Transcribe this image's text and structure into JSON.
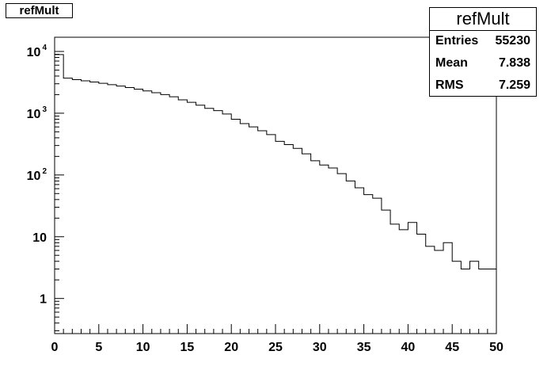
{
  "title_box": "refMult",
  "stats": {
    "title": "refMult",
    "rows": [
      {
        "key": "Entries",
        "value": "55230"
      },
      {
        "key": "Mean",
        "value": "7.838"
      },
      {
        "key": "RMS",
        "value": "7.259"
      }
    ]
  },
  "chart_data": {
    "type": "bar",
    "title": "refMult",
    "xlabel": "",
    "ylabel": "",
    "xlim": [
      0,
      50
    ],
    "ylog": true,
    "bin_width": 1,
    "x_ticks": [
      "0",
      "5",
      "10",
      "15",
      "20",
      "25",
      "30",
      "35",
      "40",
      "45",
      "50"
    ],
    "y_ticks": [
      {
        "value": 1,
        "label": "1"
      },
      {
        "value": 10,
        "label": "10"
      },
      {
        "value": 100,
        "base": "10",
        "exp": "2"
      },
      {
        "value": 1000,
        "base": "10",
        "exp": "3"
      },
      {
        "value": 10000,
        "base": "10",
        "exp": "4"
      }
    ],
    "values": [
      8900,
      3700,
      3500,
      3350,
      3200,
      3050,
      2900,
      2750,
      2600,
      2450,
      2300,
      2150,
      2000,
      1850,
      1650,
      1500,
      1350,
      1200,
      1100,
      970,
      800,
      680,
      600,
      520,
      450,
      350,
      310,
      270,
      220,
      170,
      145,
      130,
      105,
      80,
      62,
      48,
      42,
      27,
      16,
      13,
      17,
      11,
      7,
      6,
      8,
      4,
      3,
      4,
      3,
      3
    ]
  }
}
